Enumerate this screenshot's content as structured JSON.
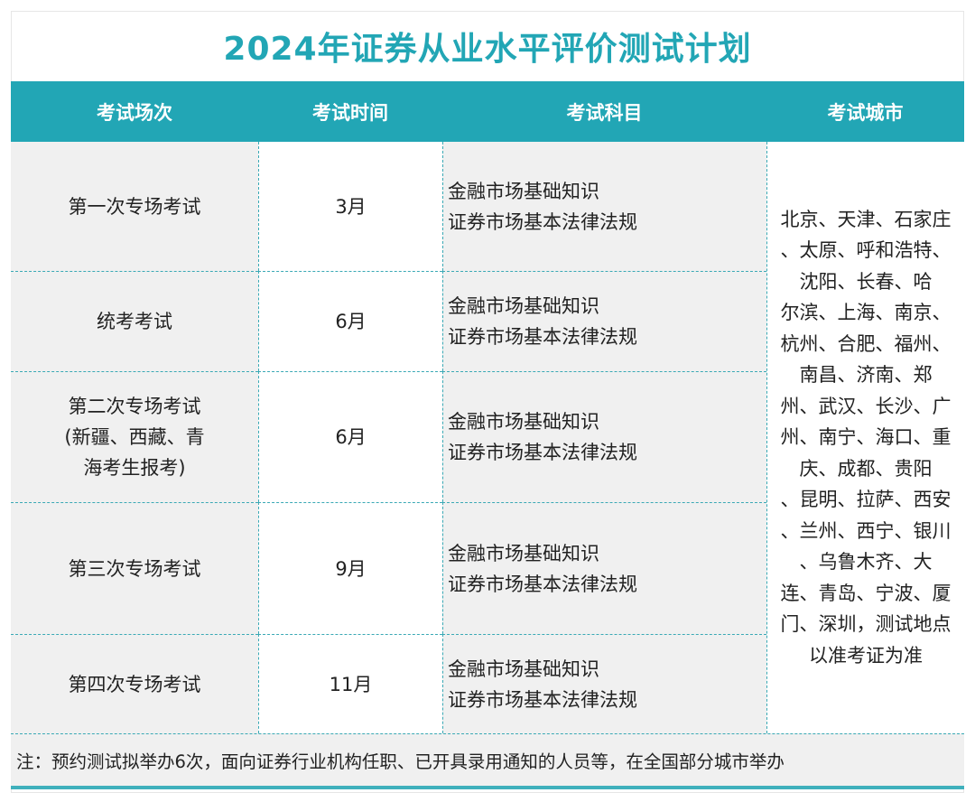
{
  "title": "2024年证券从业水平评价测试计划",
  "headers": [
    "考试场次",
    "考试时间",
    "考试科目",
    "考试城市"
  ],
  "rows": [
    {
      "session": "第一次专场考试",
      "time": "3月",
      "subjects": [
        "金融市场基础知识",
        "证券市场基本法律法规"
      ]
    },
    {
      "session": "统考考试",
      "time": "6月",
      "subjects": [
        "金融市场基础知识",
        "证券市场基本法律法规"
      ]
    },
    {
      "session_lines": [
        "第二次专场考试",
        "(新疆、西藏、青",
        "海考生报考)"
      ],
      "time": "6月",
      "subjects": [
        "金融市场基础知识",
        "证券市场基本法律法规"
      ]
    },
    {
      "session": "第三次专场考试",
      "time": "9月",
      "subjects": [
        "金融市场基础知识",
        "证券市场基本法律法规"
      ]
    },
    {
      "session": "第四次专场考试",
      "time": "11月",
      "subjects": [
        "金融市场基础知识",
        "证券市场基本法律法规"
      ]
    }
  ],
  "cities_lines": [
    "北京、天津、石家庄",
    "、太原、呼和浩特、",
    "沈阳、长春、哈",
    "尔滨、上海、南京、",
    "杭州、合肥、福州、",
    "南昌、济南、郑",
    "州、武汉、长沙、广",
    "州、南宁、海口、重",
    "庆、成都、贵阳",
    "、昆明、拉萨、西安",
    "、兰州、西宁、银川",
    "、乌鲁木齐、大",
    "连、青岛、宁波、厦",
    "门、深圳，测试地点",
    "以准考证为准"
  ],
  "note": "注：预约测试拟举办6次，面向证券行业机构任职、已开具录用通知的人员等，在全国部分城市举办",
  "colors": {
    "accent": "#22a6b5",
    "cell_gray": "#f0f0f0"
  }
}
